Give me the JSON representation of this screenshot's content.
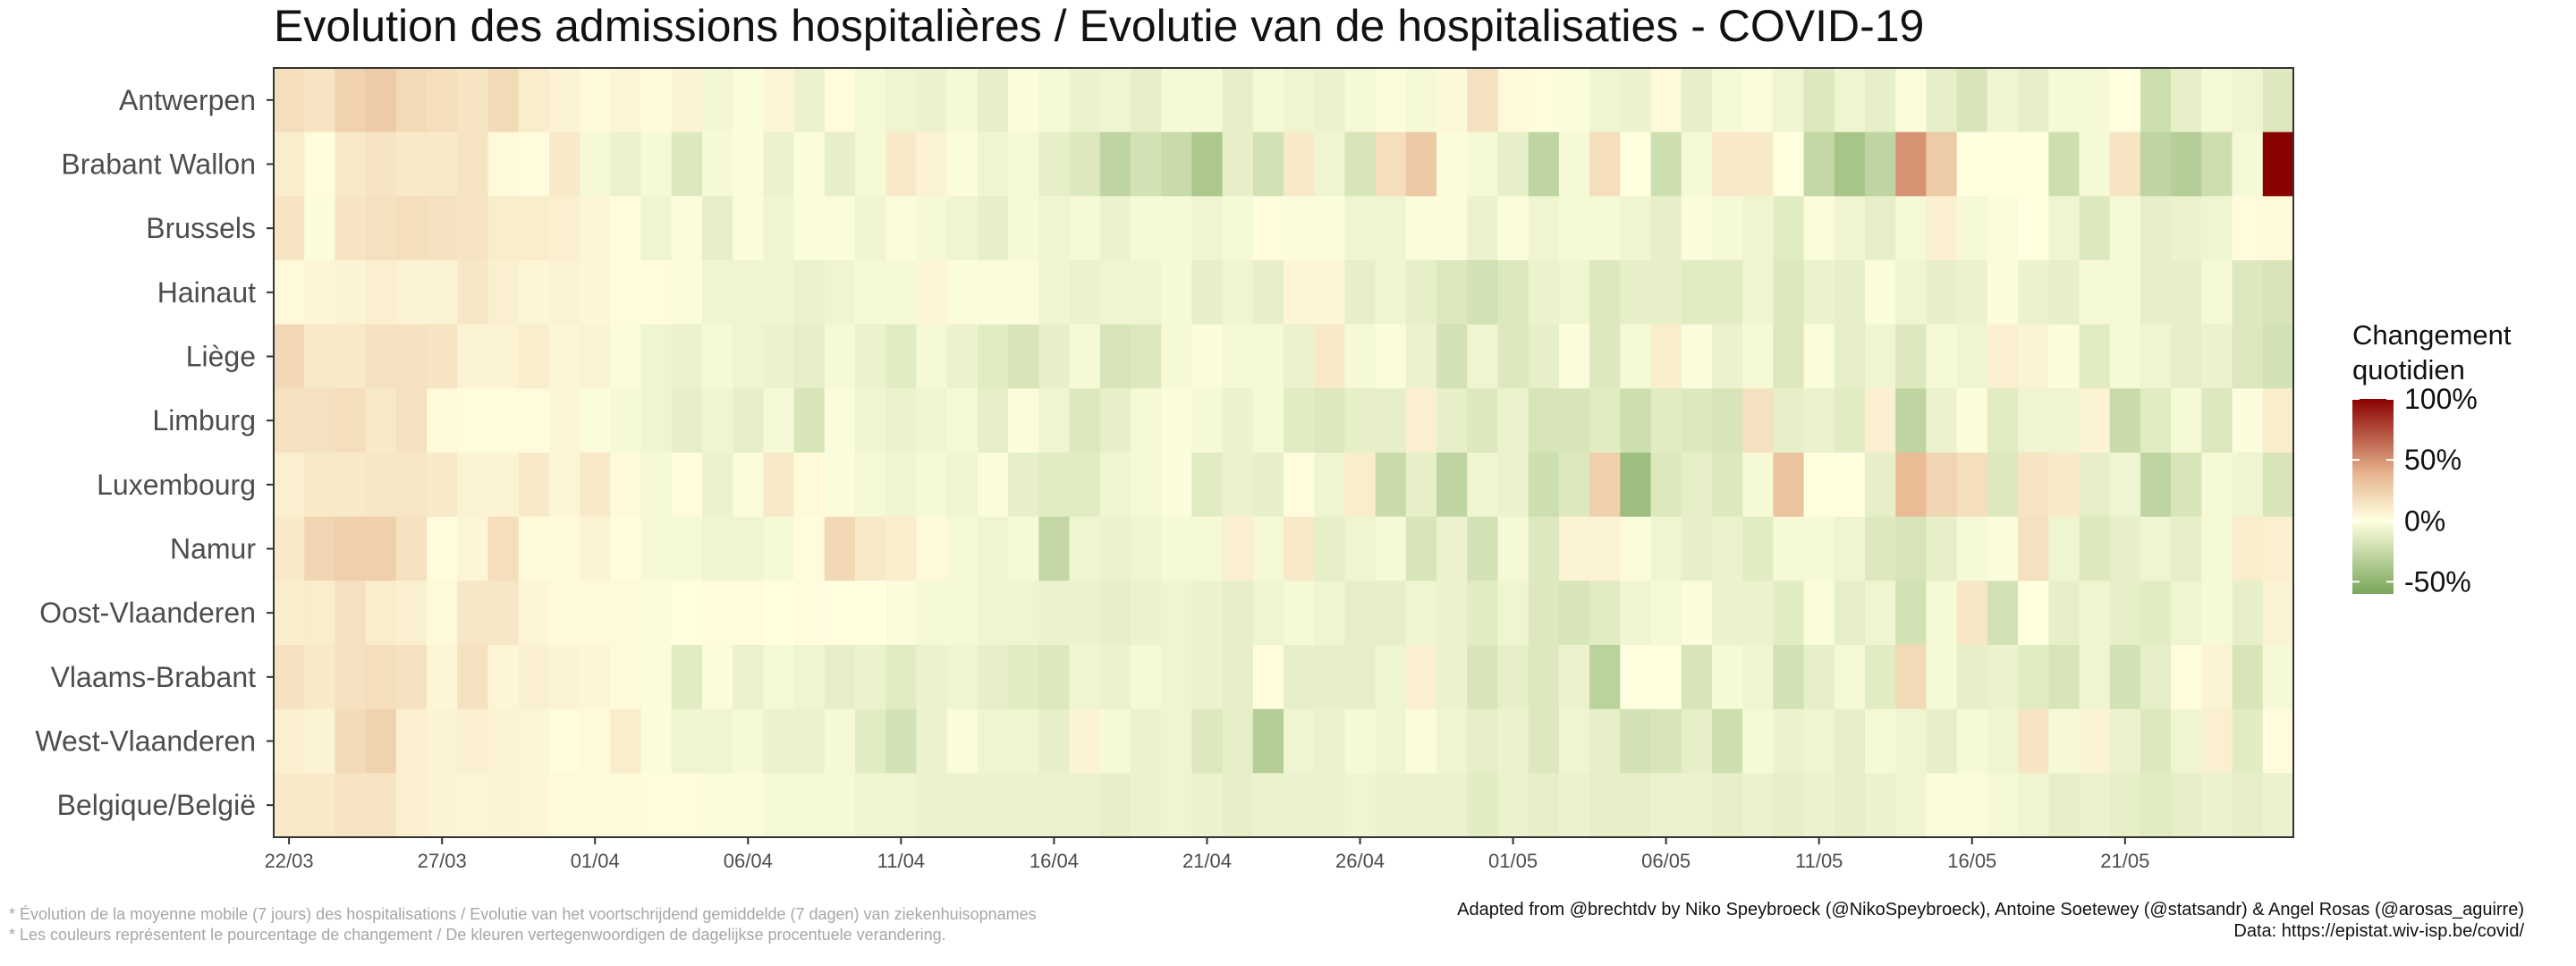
{
  "colors": {
    "low": "#78A65A",
    "mid": "#FFFFE0",
    "high": "#8B0000",
    "panel_border": "#333333"
  },
  "chart_data": {
    "type": "heatmap",
    "title": "Evolution des admissions hospitalières / Evolutie van de hospitalisaties - COVID-19",
    "xlabel": "",
    "ylabel": "",
    "rows": [
      "Antwerpen",
      "Brabant Wallon",
      "Brussels",
      "Hainaut",
      "Liège",
      "Limburg",
      "Luxembourg",
      "Namur",
      "Oost-Vlaanderen",
      "Vlaams-Brabant",
      "West-Vlaanderen",
      "Belgique/België"
    ],
    "x_start": "22/03",
    "x_end": "22/05",
    "x_tick_labels": [
      "22/03",
      "27/03",
      "01/04",
      "06/04",
      "11/04",
      "16/04",
      "21/04",
      "26/04",
      "01/05",
      "06/05",
      "11/05",
      "16/05",
      "21/05"
    ],
    "legend": {
      "title_lines": [
        "Changement",
        "quotidien"
      ],
      "labels": [
        "100%",
        "50%",
        "0%",
        "-50%"
      ],
      "values": [
        100,
        50,
        0,
        -50
      ],
      "range": [
        -60,
        100
      ],
      "position": "right"
    },
    "units": "percent",
    "values": [
      [
        22,
        18,
        30,
        35,
        25,
        22,
        18,
        25,
        12,
        8,
        4,
        6,
        3,
        8,
        -5,
        -2,
        6,
        -8,
        2,
        -4,
        -6,
        -8,
        -4,
        -10,
        -2,
        -4,
        -8,
        -6,
        -10,
        -4,
        -4,
        -10,
        -4,
        -6,
        -8,
        -4,
        -2,
        -4,
        5,
        20,
        4,
        2,
        -2,
        -6,
        -8,
        4,
        -10,
        -4,
        -2,
        -6,
        -14,
        -6,
        -10,
        -2,
        -10,
        -16,
        -6,
        -10,
        -4,
        -4,
        0,
        -20,
        -10,
        -4,
        -6,
        -14
      ],
      [
        12,
        2,
        14,
        18,
        14,
        14,
        18,
        4,
        2,
        14,
        -4,
        -8,
        -4,
        -14,
        -4,
        -2,
        -8,
        -2,
        -10,
        -4,
        14,
        8,
        -2,
        -6,
        -4,
        -10,
        -14,
        -26,
        -18,
        -22,
        -34,
        -10,
        -18,
        14,
        -6,
        -16,
        22,
        36,
        -2,
        -4,
        -10,
        -26,
        -4,
        22,
        0,
        -20,
        -4,
        14,
        14,
        0,
        -24,
        -36,
        -26,
        60,
        35,
        0,
        0,
        0,
        -20,
        -4,
        18,
        -26,
        -30,
        -20,
        -4,
        110,
        30
      ],
      [
        18,
        -2,
        18,
        20,
        22,
        20,
        18,
        12,
        12,
        10,
        6,
        2,
        -6,
        -2,
        -10,
        -2,
        -6,
        -2,
        -2,
        -6,
        -2,
        -4,
        -6,
        -10,
        -4,
        -6,
        -4,
        -8,
        -4,
        -4,
        -6,
        -4,
        2,
        -2,
        -2,
        -6,
        -6,
        -2,
        -2,
        -8,
        -2,
        -6,
        -4,
        -4,
        -6,
        -10,
        -2,
        -4,
        -6,
        -12,
        -2,
        -6,
        -10,
        -4,
        10,
        -4,
        -2,
        0,
        -6,
        -14,
        -4,
        -10,
        -8,
        -6,
        2,
        4,
        2
      ],
      [
        4,
        6,
        8,
        10,
        8,
        8,
        16,
        10,
        6,
        8,
        6,
        2,
        2,
        -2,
        -6,
        -6,
        -6,
        -8,
        -6,
        -4,
        -4,
        6,
        -2,
        -2,
        -2,
        -6,
        -8,
        -6,
        -6,
        -4,
        -10,
        -6,
        -10,
        6,
        6,
        -10,
        -6,
        -10,
        -14,
        -18,
        -14,
        -8,
        -6,
        -14,
        -10,
        -10,
        -12,
        -12,
        -6,
        -14,
        -8,
        -10,
        -2,
        -6,
        -10,
        -8,
        -2,
        -8,
        -10,
        -4,
        -4,
        -10,
        -10,
        -4,
        -14,
        -16,
        -20
      ],
      [
        26,
        14,
        14,
        20,
        20,
        18,
        8,
        8,
        12,
        6,
        8,
        -2,
        -6,
        -8,
        -4,
        -6,
        -8,
        -10,
        -4,
        -8,
        -12,
        -4,
        -8,
        -12,
        -16,
        -10,
        -4,
        -16,
        -14,
        -4,
        -2,
        -4,
        -4,
        -8,
        14,
        -4,
        -2,
        -8,
        -18,
        -6,
        -14,
        -10,
        -2,
        -14,
        -4,
        12,
        -2,
        -8,
        -4,
        -14,
        -2,
        -10,
        -6,
        -14,
        -4,
        -6,
        10,
        8,
        -2,
        -12,
        -4,
        -6,
        -10,
        -8,
        -14,
        -18,
        -4
      ],
      [
        20,
        20,
        22,
        14,
        20,
        4,
        2,
        2,
        2,
        6,
        -2,
        -4,
        -6,
        -10,
        -6,
        -10,
        -4,
        -16,
        -2,
        -6,
        -8,
        -6,
        -4,
        -10,
        -2,
        -6,
        -14,
        -10,
        -4,
        -2,
        -4,
        -8,
        -4,
        -12,
        -14,
        -10,
        -10,
        10,
        -10,
        -14,
        -8,
        -16,
        -16,
        -12,
        -20,
        -12,
        -14,
        -16,
        20,
        -10,
        -8,
        -12,
        10,
        -26,
        -8,
        -2,
        -12,
        -6,
        -6,
        8,
        -22,
        -12,
        -4,
        -14,
        -2,
        12,
        35
      ],
      [
        10,
        14,
        14,
        16,
        16,
        14,
        8,
        8,
        14,
        6,
        14,
        4,
        -4,
        2,
        -8,
        -2,
        14,
        4,
        -2,
        -4,
        -6,
        -4,
        -6,
        -2,
        -10,
        -12,
        -12,
        -6,
        -4,
        -2,
        -12,
        -8,
        -10,
        2,
        -6,
        12,
        -22,
        -10,
        -26,
        -6,
        -8,
        -20,
        -14,
        32,
        -40,
        -14,
        -10,
        -14,
        -4,
        40,
        0,
        0,
        -10,
        45,
        28,
        22,
        -14,
        18,
        14,
        -10,
        -6,
        -26,
        -16,
        -4,
        -6,
        -16,
        -24
      ],
      [
        14,
        28,
        32,
        32,
        20,
        2,
        6,
        22,
        4,
        4,
        8,
        2,
        -4,
        -4,
        -6,
        -6,
        -4,
        2,
        26,
        14,
        12,
        4,
        -4,
        -6,
        -4,
        -24,
        -6,
        -8,
        -6,
        -4,
        -4,
        10,
        -4,
        14,
        -10,
        -6,
        -4,
        -16,
        -8,
        -18,
        -4,
        -14,
        8,
        8,
        -2,
        -6,
        -10,
        -8,
        -12,
        -4,
        -4,
        -6,
        -14,
        -16,
        -10,
        -4,
        -2,
        20,
        -6,
        -14,
        -10,
        -6,
        -10,
        -4,
        12,
        10,
        2
      ],
      [
        12,
        12,
        20,
        12,
        10,
        4,
        16,
        16,
        6,
        4,
        4,
        4,
        -2,
        0,
        2,
        2,
        0,
        2,
        0,
        0,
        -2,
        -4,
        -4,
        -6,
        -6,
        -8,
        -8,
        -10,
        -8,
        -6,
        -8,
        -10,
        -6,
        -4,
        -6,
        -10,
        -10,
        -6,
        -8,
        -12,
        -6,
        -14,
        -16,
        -12,
        -6,
        -4,
        -2,
        -8,
        -8,
        -12,
        -2,
        -10,
        -6,
        -18,
        -4,
        16,
        -18,
        0,
        -10,
        -6,
        -10,
        -12,
        -6,
        -4,
        -10,
        8,
        -4
      ],
      [
        20,
        14,
        20,
        22,
        20,
        6,
        20,
        6,
        10,
        8,
        6,
        4,
        -2,
        -12,
        -2,
        -8,
        -4,
        -6,
        -10,
        -8,
        -12,
        -8,
        -6,
        -10,
        -12,
        -14,
        -6,
        -8,
        -4,
        -6,
        -8,
        -10,
        2,
        -10,
        -10,
        -10,
        -6,
        10,
        -8,
        -16,
        -10,
        -14,
        -8,
        -28,
        0,
        0,
        -16,
        -4,
        -6,
        -18,
        -10,
        -4,
        -12,
        25,
        -4,
        -10,
        -8,
        -12,
        -16,
        -6,
        -18,
        -10,
        2,
        8,
        -16,
        -4,
        -6
      ],
      [
        10,
        8,
        24,
        30,
        10,
        8,
        10,
        8,
        6,
        2,
        4,
        12,
        -2,
        -6,
        -6,
        -4,
        -8,
        -8,
        -4,
        -12,
        -18,
        -8,
        -2,
        -6,
        -6,
        -10,
        8,
        -4,
        -8,
        -6,
        -14,
        -10,
        -30,
        -6,
        -8,
        -4,
        -6,
        -2,
        -6,
        -10,
        -8,
        -14,
        -6,
        -10,
        -18,
        -16,
        -10,
        -20,
        -4,
        -8,
        -6,
        -10,
        -4,
        -6,
        -10,
        -4,
        -6,
        18,
        -4,
        8,
        -8,
        -14,
        -6,
        10,
        -12,
        2,
        -6
      ],
      [
        14,
        14,
        18,
        18,
        10,
        8,
        6,
        8,
        6,
        4,
        4,
        4,
        2,
        2,
        -2,
        -2,
        -4,
        -4,
        -4,
        -6,
        -6,
        -8,
        -8,
        -8,
        -8,
        -8,
        -8,
        -10,
        -8,
        -6,
        -8,
        -10,
        -8,
        -8,
        -8,
        -6,
        -8,
        -8,
        -8,
        -12,
        -8,
        -10,
        -8,
        -10,
        -10,
        -8,
        -8,
        -10,
        -8,
        -10,
        -8,
        -10,
        -8,
        -6,
        -2,
        -2,
        -4,
        -6,
        -10,
        -8,
        -10,
        -12,
        -10,
        -8,
        -10,
        -8,
        -10
      ]
    ]
  },
  "footer": {
    "note_1": "* Évolution de la moyenne mobile (7 jours) des hospitalisations / Evolutie van het voortschrijdend gemiddelde (7 dagen) van ziekenhuisopnames",
    "note_2": "* Les couleurs  représentent le pourcentage de changement / De kleuren  vertegenwoordigen de dagelijkse procentuele  verandering.",
    "credit": "Adapted from @brechtdv by Niko Speybroeck (@NikoSpeybroeck), Antoine Soetewey (@statsandr) & Angel Rosas (@arosas_aguirre)",
    "source": "Data: https://epistat.wiv-isp.be/covid/"
  }
}
